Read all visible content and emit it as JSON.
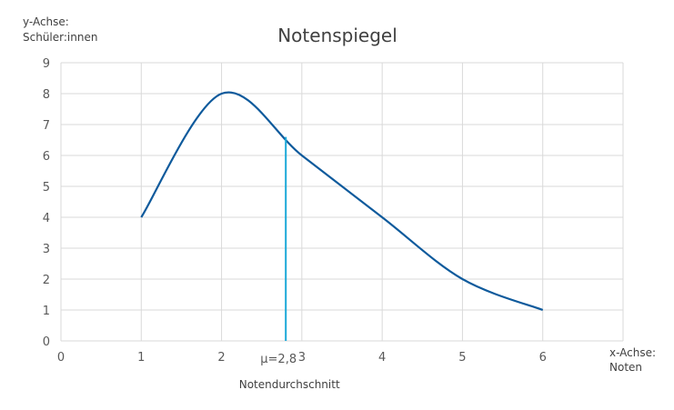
{
  "chart_data": {
    "type": "line",
    "title": "Notenspiegel",
    "ylabel_lines": [
      "y-Achse:",
      "Schüler:innen"
    ],
    "xlabel_lines": [
      "x-Achse:",
      "Noten"
    ],
    "x": [
      1,
      2,
      3,
      4,
      5,
      6
    ],
    "series": [
      {
        "values": [
          4,
          8,
          6,
          4,
          2,
          1
        ],
        "color": "#0e5a9c",
        "smooth": true
      }
    ],
    "xlim": [
      0,
      7
    ],
    "ylim": [
      0,
      9
    ],
    "xticks": [
      0,
      1,
      2,
      3,
      4,
      5,
      6
    ],
    "yticks": [
      0,
      1,
      2,
      3,
      4,
      5,
      6,
      7,
      8,
      9
    ],
    "grid": true,
    "mean_marker": {
      "x": 2.8,
      "y_top": 6.6,
      "label": "μ=2,8",
      "caption": "Notendurchschnitt",
      "color": "#1ba9d8"
    }
  }
}
